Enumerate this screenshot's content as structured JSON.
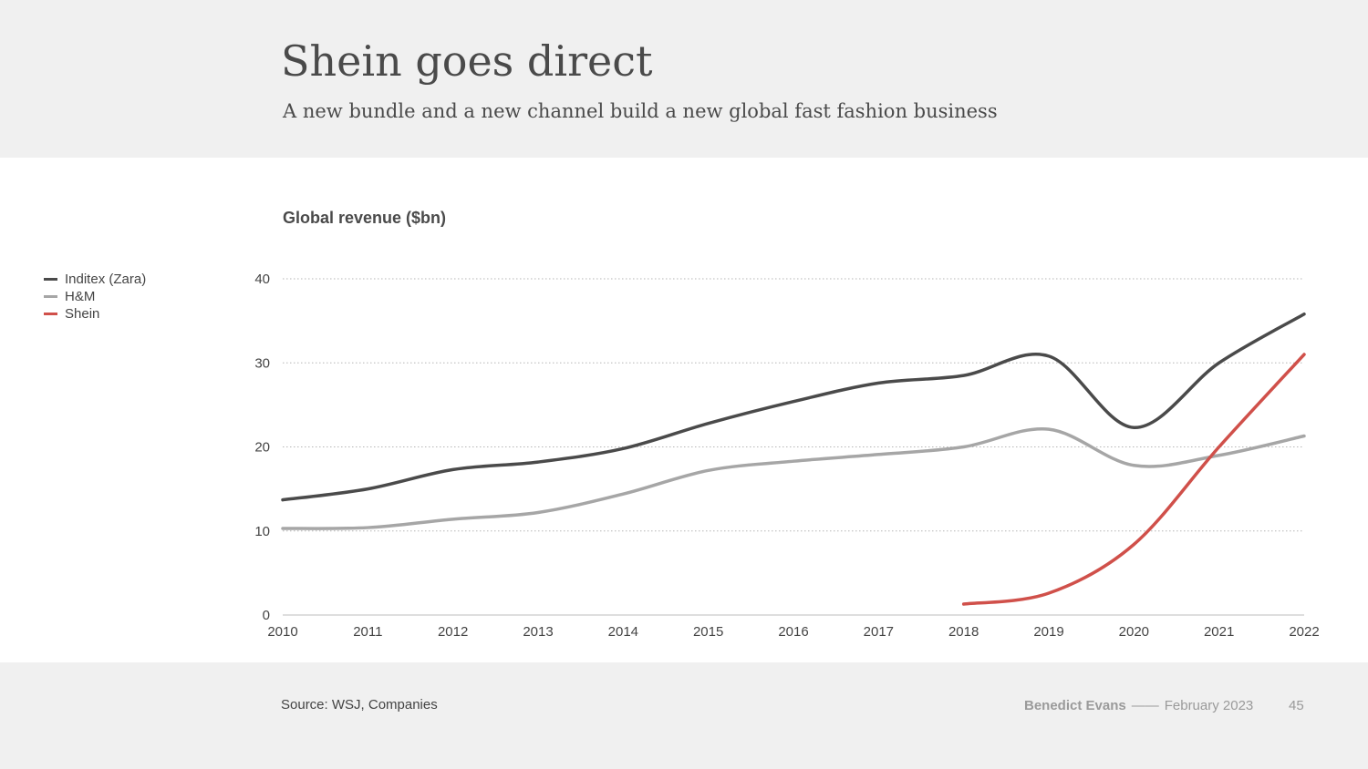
{
  "slide": {
    "title": "Shein goes direct",
    "subtitle": "A new bundle and a new channel build a new global fast fashion business"
  },
  "chart_data": {
    "type": "line",
    "title": "Global revenue ($bn)",
    "xlabel": "",
    "ylabel": "",
    "x": [
      2010,
      2011,
      2012,
      2013,
      2014,
      2015,
      2016,
      2017,
      2018,
      2019,
      2020,
      2021,
      2022
    ],
    "ylim": [
      0,
      40
    ],
    "yticks": [
      0,
      10,
      20,
      30,
      40
    ],
    "grid": true,
    "legend_position": "left",
    "series": [
      {
        "name": "Inditex (Zara)",
        "color": "#4a4a4a",
        "values": [
          13.7,
          15.0,
          17.3,
          18.2,
          19.8,
          22.8,
          25.4,
          27.6,
          28.5,
          30.8,
          22.3,
          30.0,
          35.8
        ]
      },
      {
        "name": "H&M",
        "color": "#a6a6a6",
        "values": [
          10.3,
          10.4,
          11.4,
          12.2,
          14.4,
          17.2,
          18.3,
          19.1,
          20.0,
          22.1,
          17.8,
          19.0,
          21.3
        ]
      },
      {
        "name": "Shein",
        "color": "#d0504a",
        "values": [
          null,
          null,
          null,
          null,
          null,
          null,
          null,
          null,
          1.3,
          2.6,
          8.4,
          20.0,
          31.0
        ]
      }
    ]
  },
  "footer": {
    "source": "Source: WSJ, Companies",
    "author": "Benedict Evans",
    "separator": "——",
    "date": "February 2023",
    "page": "45"
  }
}
